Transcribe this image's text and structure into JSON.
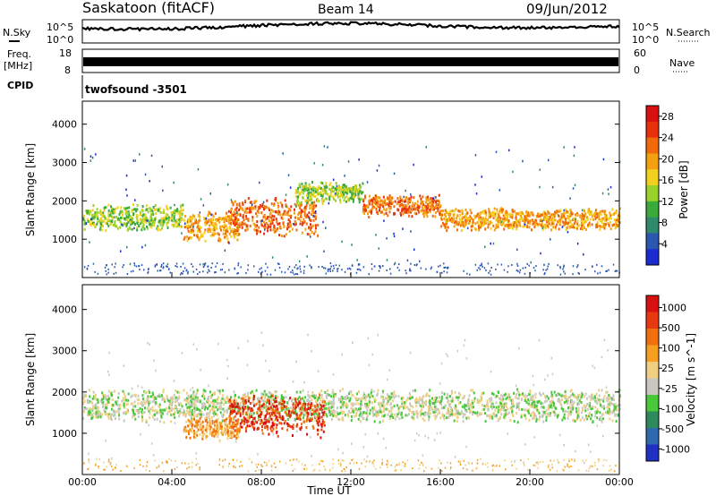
{
  "header": {
    "station": "Saskatoon (fitACF)",
    "beam": "Beam 14",
    "date": "09/Jun/2012"
  },
  "strip_labels": {
    "nsky": "N.Sky",
    "nsky_hi": "10^5",
    "nsky_lo": "10^0",
    "nsearch": "N.Search",
    "nsearch_hi": "10^5",
    "nsearch_lo": "10^0",
    "freq_line1": "Freq.",
    "freq_line2": "[MHz]",
    "freq_hi": "18",
    "freq_lo": "8",
    "nave": "Nave",
    "nave_hi": "60",
    "nave_lo": "0",
    "cpid": "CPID",
    "cpid_value": "twofsound -3501"
  },
  "chart_data": [
    {
      "type": "heatmap",
      "name": "power",
      "ylabel": "Slant Range [km]",
      "ylim": [
        0,
        4600
      ],
      "yticks": [
        1000,
        2000,
        3000,
        4000
      ],
      "xlim": [
        0,
        24
      ],
      "colorbar": {
        "label": "Power [dB]",
        "ticks": [
          "4",
          "8",
          "12",
          "16",
          "20",
          "24",
          "28"
        ],
        "colors": [
          "#1a2bd0",
          "#2b57b0",
          "#2e8a6a",
          "#3aaa3a",
          "#9ad12a",
          "#f2d020",
          "#f5a010",
          "#f06a0a",
          "#e8300a",
          "#d81010"
        ]
      },
      "bands": [
        {
          "from": 0,
          "to": 4.5,
          "center": 1600,
          "width": 600,
          "color_index": 4
        },
        {
          "from": 4.5,
          "to": 7.0,
          "center": 1350,
          "width": 700,
          "color_index": 6
        },
        {
          "from": 6.5,
          "to": 10.5,
          "center": 1600,
          "width": 900,
          "color_index": 7
        },
        {
          "from": 9.5,
          "to": 12.5,
          "center": 2250,
          "width": 500,
          "color_index": 4
        },
        {
          "from": 12.5,
          "to": 16.0,
          "center": 1900,
          "width": 500,
          "color_index": 7
        },
        {
          "from": 16.0,
          "to": 24,
          "center": 1550,
          "width": 500,
          "color_index": 6
        }
      ]
    },
    {
      "type": "heatmap",
      "name": "velocity",
      "ylabel": "Slant Range [km]",
      "ylim": [
        0,
        4600
      ],
      "yticks": [
        1000,
        2000,
        3000,
        4000
      ],
      "xlim": [
        0,
        24
      ],
      "xticks": [
        "00:00",
        "04:00",
        "08:00",
        "12:00",
        "16:00",
        "20:00",
        "00:00"
      ],
      "xlabel": "Time UT",
      "colorbar": {
        "label": "Velocity [m s^-1]",
        "ticks": [
          "1000",
          "500",
          "100",
          "25",
          "-25",
          "-100",
          "-500",
          "-1000"
        ],
        "colors": [
          "#2030c0",
          "#2f6ab0",
          "#2e8a5a",
          "#48c83a",
          "#c8c8c0",
          "#f0d080",
          "#f5a020",
          "#f07010",
          "#e83810",
          "#d81010"
        ]
      },
      "bands": [
        {
          "from": 0,
          "to": 24,
          "center": 1700,
          "width": 700,
          "color_index": 4
        },
        {
          "from": 6.5,
          "to": 10.8,
          "center": 1450,
          "width": 900,
          "color_index": 8
        },
        {
          "from": 4.5,
          "to": 7.0,
          "center": 1150,
          "width": 500,
          "color_index": 6
        }
      ]
    }
  ]
}
